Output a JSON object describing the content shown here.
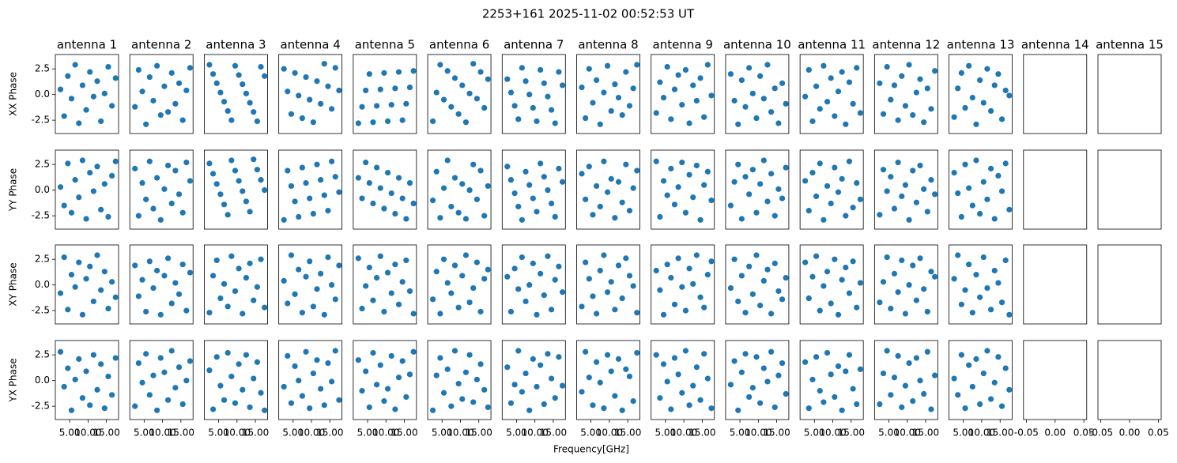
{
  "chart_data": {
    "type": "scatter",
    "title": "2253+161 2025-11-02 00:52:53 UT",
    "x_label": "Frequency[GHz]",
    "row_labels": [
      "XX Phase",
      "YY Phase",
      "XY Phase",
      "YX Phase"
    ],
    "column_titles": [
      "antenna 1",
      "antenna 2",
      "antenna 3",
      "antenna 4",
      "antenna 5",
      "antenna 6",
      "antenna 7",
      "antenna 8",
      "antenna 9",
      "antenna 10",
      "antenna 11",
      "antenna 12",
      "antenna 13",
      "antenna 14",
      "antenna 15"
    ],
    "color": "#1f77b4",
    "xlim": [
      1.1,
      18.3
    ],
    "xticks": [
      {
        "value": 5,
        "label": "5.00"
      },
      {
        "value": 10,
        "label": "10.00"
      },
      {
        "value": 15,
        "label": "15.00"
      }
    ],
    "empty_xlim": [
      -0.055,
      0.055
    ],
    "empty_xticks": [
      -0.05,
      {
        "value": 0,
        "label": "0.00"
      },
      0.05
    ],
    "ylim": [
      -3.8,
      3.9
    ],
    "yticks": [
      -2.5,
      {
        "value": 0,
        "label": "0.0"
      },
      2.5
    ],
    "x": [
      2.5,
      3.5,
      4.5,
      5.5,
      6.5,
      7.5,
      8.5,
      9.5,
      10.5,
      11.5,
      12.5,
      13.5,
      14.5,
      15.5,
      16.5,
      17.5
    ],
    "panels": [
      [
        [
          0.5,
          -2.1,
          1.8,
          -0.4,
          2.9,
          -2.8,
          0.9,
          -1.5,
          2.2,
          -0.2,
          1.3,
          -2.6,
          0.1,
          2.7,
          -1.1,
          1.6
        ],
        [
          -1.2,
          2.4,
          0.3,
          -2.9,
          1.7,
          -0.6,
          2.8,
          -2.0,
          0.8,
          -1.7,
          2.1,
          -0.9,
          1.1,
          -2.5,
          0.4,
          2.6
        ],
        [
          2.9,
          2.0,
          1.1,
          0.2,
          -0.7,
          -1.6,
          -2.5,
          2.8,
          1.9,
          1.0,
          0.1,
          -0.8,
          -1.7,
          -2.6,
          2.7,
          1.8
        ],
        [
          2.5,
          0.3,
          -1.9,
          2.1,
          -0.1,
          -2.3,
          1.7,
          -0.5,
          -2.7,
          1.3,
          -0.9,
          3.0,
          0.8,
          -1.4,
          2.6,
          0.4
        ],
        [
          -2.8,
          -1.2,
          0.4,
          2.0,
          -2.7,
          -1.1,
          0.5,
          2.1,
          -2.6,
          -1.0,
          0.6,
          2.2,
          -2.5,
          -0.9,
          0.7,
          2.3
        ],
        [
          -2.6,
          0.2,
          2.9,
          -0.5,
          2.3,
          -1.2,
          1.6,
          -1.9,
          0.9,
          -2.7,
          0.1,
          3.0,
          -0.4,
          2.2,
          -1.3,
          1.5
        ],
        [
          1.5,
          0.2,
          -1.1,
          -2.4,
          2.6,
          1.3,
          0.0,
          -1.3,
          -2.6,
          2.4,
          1.1,
          -0.2,
          -1.5,
          -2.8,
          2.2,
          0.9
        ],
        [
          0.7,
          -2.3,
          2.5,
          -0.8,
          1.4,
          -2.9,
          0.2,
          2.8,
          -1.6,
          1.0,
          -0.3,
          -2.0,
          2.2,
          -1.1,
          0.6,
          2.9
        ],
        [
          -1.8,
          1.2,
          -0.3,
          2.7,
          -2.4,
          0.5,
          1.9,
          -1.0,
          2.4,
          -2.8,
          0.9,
          -0.6,
          1.6,
          -2.2,
          2.9,
          -0.1
        ],
        [
          2.0,
          -0.6,
          -2.9,
          1.4,
          -1.2,
          2.6,
          0.1,
          -2.3,
          1.8,
          -0.4,
          2.9,
          -1.7,
          0.6,
          -2.8,
          1.1,
          -0.9
        ],
        [
          -0.2,
          2.4,
          -2.6,
          0.8,
          -1.4,
          2.8,
          -0.7,
          1.6,
          -2.1,
          0.3,
          2.2,
          -2.9,
          1.2,
          -0.9,
          2.6,
          -1.8
        ],
        [
          1.1,
          -1.9,
          2.7,
          -0.5,
          0.9,
          -2.5,
          1.8,
          -1.1,
          2.9,
          -2.0,
          0.2,
          1.5,
          -2.7,
          0.6,
          -1.4,
          2.3
        ],
        [
          -2.2,
          0.6,
          2.1,
          -1.3,
          2.8,
          -0.3,
          -2.9,
          1.4,
          -0.8,
          2.5,
          -1.6,
          0.9,
          2.0,
          -2.4,
          0.4,
          -0.1
        ]
      ],
      [
        [
          0.3,
          -1.5,
          2.6,
          -2.2,
          1.0,
          -0.7,
          2.9,
          -2.8,
          1.7,
          -0.1,
          2.3,
          -1.9,
          0.6,
          -2.6,
          1.4,
          2.8
        ],
        [
          2.1,
          -2.5,
          0.7,
          -0.9,
          2.8,
          -1.8,
          1.2,
          -2.9,
          0.1,
          2.4,
          -1.3,
          1.9,
          -0.4,
          -2.2,
          2.7,
          0.9
        ],
        [
          2.6,
          1.6,
          0.6,
          -0.4,
          -1.4,
          -2.4,
          2.9,
          1.9,
          0.9,
          -0.1,
          -1.1,
          -2.1,
          3.0,
          2.0,
          1.0,
          0.0
        ],
        [
          -2.9,
          1.9,
          0.4,
          -1.1,
          -2.6,
          2.2,
          0.7,
          -0.8,
          -2.3,
          2.5,
          1.0,
          -0.5,
          -2.0,
          2.8,
          1.3,
          -0.2
        ],
        [
          1.2,
          -0.8,
          2.7,
          0.7,
          -1.3,
          2.2,
          0.2,
          -1.8,
          1.7,
          -0.3,
          -2.3,
          1.2,
          -0.8,
          -2.8,
          0.7,
          -1.3
        ],
        [
          -1.0,
          1.8,
          -2.7,
          0.2,
          2.9,
          -1.6,
          1.2,
          -2.2,
          0.6,
          -2.8,
          0.0,
          2.5,
          -0.9,
          1.9,
          -2.5,
          0.4
        ],
        [
          2.3,
          1.0,
          -0.3,
          -1.6,
          -2.9,
          1.8,
          0.5,
          -0.8,
          -2.1,
          2.6,
          1.3,
          0.0,
          -1.3,
          -2.6,
          2.1,
          0.8
        ],
        [
          1.6,
          -0.9,
          2.3,
          -2.4,
          0.4,
          -1.6,
          2.8,
          -0.2,
          1.1,
          -2.7,
          0.8,
          -1.2,
          2.5,
          -2.0,
          0.2,
          1.9
        ],
        [
          2.8,
          -2.6,
          0.9,
          -0.5,
          2.1,
          -1.4,
          0.3,
          2.7,
          -2.2,
          1.5,
          -0.7,
          2.4,
          -2.9,
          0.5,
          1.8,
          -1.0
        ],
        [
          -1.5,
          0.8,
          2.5,
          -2.8,
          1.3,
          -0.4,
          2.0,
          -2.2,
          0.6,
          2.9,
          -1.1,
          1.6,
          -2.5,
          0.1,
          -0.8,
          2.2
        ],
        [
          0.9,
          -2.0,
          1.7,
          -0.6,
          2.6,
          -2.9,
          0.4,
          -1.3,
          2.2,
          -0.2,
          1.1,
          -2.5,
          2.8,
          -1.7,
          0.7,
          -0.9
        ],
        [
          -2.4,
          2.0,
          -0.1,
          1.3,
          -1.8,
          2.7,
          -0.6,
          0.5,
          -2.9,
          1.9,
          -1.2,
          2.4,
          0.1,
          -2.1,
          1.0,
          -0.4
        ],
        [
          1.7,
          -0.3,
          -2.6,
          2.5,
          0.2,
          -1.5,
          2.9,
          -2.3,
          0.8,
          -0.9,
          2.1,
          -2.8,
          1.4,
          -0.1,
          2.6,
          -1.9
        ]
      ],
      [
        [
          -0.8,
          2.7,
          -2.4,
          1.0,
          -0.2,
          2.2,
          -2.9,
          0.6,
          1.8,
          -1.6,
          2.9,
          -0.5,
          1.3,
          -2.3,
          0.3,
          -1.2
        ],
        [
          1.9,
          -1.1,
          0.5,
          -2.6,
          2.3,
          -0.3,
          1.4,
          -2.9,
          0.9,
          2.6,
          -1.8,
          0.2,
          -0.9,
          2.0,
          -2.5,
          1.2
        ],
        [
          -2.7,
          0.9,
          2.4,
          -1.3,
          0.1,
          -2.1,
          2.8,
          -0.6,
          1.6,
          -2.8,
          0.7,
          2.1,
          -1.5,
          -0.2,
          2.5,
          -2.2
        ],
        [
          0.4,
          -1.8,
          2.9,
          -0.9,
          1.5,
          -2.7,
          0.8,
          2.3,
          -2.1,
          -0.4,
          1.1,
          -2.9,
          2.7,
          0.0,
          -1.4,
          1.9
        ],
        [
          2.6,
          -2.3,
          -0.1,
          1.7,
          -1.5,
          0.7,
          2.8,
          -2.6,
          1.2,
          -0.8,
          2.0,
          -1.9,
          0.3,
          2.4,
          -0.6,
          -2.8
        ],
        [
          -1.4,
          1.3,
          -2.8,
          2.5,
          0.2,
          -0.8,
          1.9,
          -2.2,
          0.9,
          2.9,
          -1.7,
          -0.3,
          2.2,
          -2.6,
          0.6,
          1.5
        ],
        [
          0.8,
          -2.6,
          1.6,
          -0.4,
          2.7,
          -1.6,
          0.0,
          2.1,
          -2.9,
          1.1,
          -1.0,
          2.8,
          -2.4,
          0.5,
          1.8,
          -0.7
        ],
        [
          -2.1,
          2.2,
          0.6,
          -1.1,
          -2.8,
          1.4,
          2.9,
          -0.7,
          0.3,
          -2.4,
          1.9,
          -1.3,
          2.6,
          0.9,
          -0.1,
          -2.7
        ],
        [
          1.4,
          -0.5,
          -2.9,
          2.0,
          0.7,
          -1.9,
          2.6,
          -0.2,
          -2.5,
          1.6,
          0.1,
          2.9,
          -1.2,
          -2.2,
          1.0,
          2.3
        ],
        [
          -0.3,
          2.5,
          -1.6,
          0.9,
          -2.7,
          1.8,
          -0.9,
          2.9,
          -2.0,
          0.4,
          1.5,
          -2.8,
          2.1,
          -0.6,
          -1.4,
          0.7
        ],
        [
          2.2,
          -1.3,
          0.8,
          2.8,
          -2.5,
          -0.1,
          1.3,
          -1.8,
          2.5,
          -2.9,
          0.5,
          1.7,
          -0.8,
          2.3,
          -2.2,
          0.2
        ],
        [
          -1.7,
          0.3,
          2.7,
          -2.3,
          1.1,
          -0.7,
          2.4,
          -2.8,
          0.0,
          1.9,
          -1.5,
          2.6,
          -0.4,
          -2.6,
          1.3,
          0.8
        ],
        [
          0.6,
          2.9,
          -1.9,
          -0.5,
          2.0,
          -2.7,
          1.0,
          -1.2,
          2.7,
          -0.3,
          -2.4,
          1.4,
          0.2,
          -1.7,
          2.4,
          -2.9
        ]
      ],
      [
        [
          2.8,
          -0.6,
          1.2,
          -2.9,
          0.1,
          2.1,
          -1.7,
          0.9,
          -2.4,
          2.5,
          -0.9,
          1.6,
          -2.7,
          0.4,
          -1.4,
          2.2
        ],
        [
          -2.5,
          1.7,
          -0.2,
          2.6,
          -1.4,
          0.5,
          -2.9,
          2.2,
          0.8,
          -1.9,
          2.9,
          -0.7,
          1.3,
          -2.3,
          0.0,
          1.9
        ],
        [
          1.0,
          -2.8,
          2.3,
          -0.5,
          -1.9,
          2.7,
          0.4,
          -2.2,
          1.6,
          -0.9,
          2.5,
          -2.6,
          0.2,
          1.8,
          -1.2,
          -2.9
        ],
        [
          -0.6,
          2.4,
          -2.2,
          1.4,
          0.0,
          -1.5,
          2.8,
          -2.7,
          0.7,
          2.0,
          -0.8,
          -2.4,
          1.7,
          -0.1,
          2.9,
          -1.9
        ],
        [
          2.0,
          -1.0,
          0.9,
          -2.6,
          2.7,
          -0.4,
          1.5,
          -2.0,
          -0.8,
          2.4,
          -2.8,
          0.3,
          1.9,
          -1.6,
          0.6,
          2.8
        ],
        [
          -2.9,
          0.5,
          2.2,
          -1.2,
          1.1,
          -2.5,
          2.9,
          -0.3,
          -1.8,
          0.8,
          2.5,
          -2.1,
          0.1,
          1.6,
          -0.9,
          -2.6
        ],
        [
          1.3,
          -2.2,
          -0.4,
          2.9,
          -1.1,
          0.7,
          -2.9,
          2.1,
          -0.6,
          1.5,
          -2.3,
          2.6,
          0.2,
          -1.7,
          2.3,
          -0.5
        ],
        [
          -1.1,
          2.8,
          0.3,
          -2.4,
          1.8,
          -0.2,
          -2.7,
          2.5,
          0.9,
          -1.5,
          2.1,
          -2.9,
          1.1,
          0.4,
          -2.0,
          2.7
        ],
        [
          2.5,
          -1.7,
          1.6,
          -0.1,
          -2.8,
          2.2,
          0.6,
          -1.2,
          2.9,
          -2.4,
          -0.5,
          1.3,
          -1.9,
          2.6,
          0.2,
          -2.7
        ],
        [
          -0.4,
          1.9,
          -2.9,
          0.8,
          2.6,
          -1.6,
          -0.7,
          2.3,
          -2.2,
          1.2,
          -0.1,
          2.8,
          -2.6,
          0.5,
          1.7,
          -1.3
        ],
        [
          1.8,
          -2.7,
          0.1,
          2.3,
          -1.0,
          -2.1,
          2.7,
          0.6,
          -1.6,
          1.4,
          -2.9,
          0.9,
          2.5,
          -0.8,
          -2.3,
          1.1
        ],
        [
          -2.3,
          0.7,
          2.9,
          -1.4,
          0.3,
          2.4,
          -2.6,
          -0.5,
          1.7,
          -2.0,
          2.2,
          0.0,
          -1.3,
          2.8,
          -2.8,
          0.5
        ],
        [
          0.2,
          -1.4,
          2.5,
          -2.7,
          1.5,
          -0.6,
          2.1,
          -2.3,
          0.7,
          2.9,
          -1.8,
          -0.2,
          2.3,
          -2.5,
          1.2,
          -0.9
        ]
      ]
    ]
  }
}
